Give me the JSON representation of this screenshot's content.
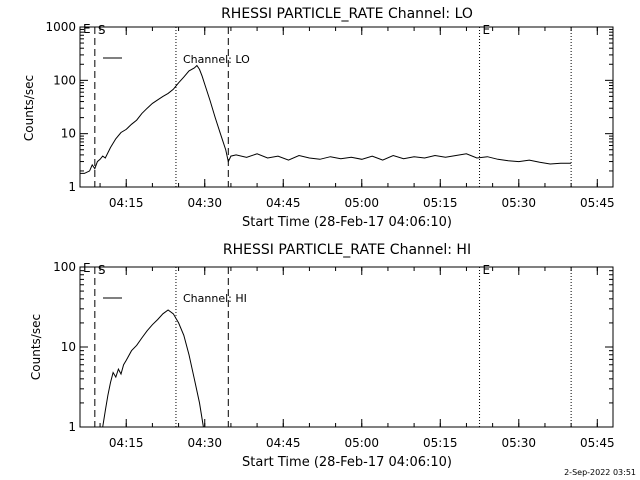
{
  "chart_data": [
    {
      "type": "line",
      "title": "RHESSI PARTICLE_RATE Channel: LO",
      "xlabel": "Start Time (28-Feb-17 04:06:10)",
      "ylabel": "Counts/sec",
      "yscale": "log",
      "ylim": [
        1,
        1000
      ],
      "xlim": [
        "04:06:10",
        "05:48:00"
      ],
      "ytick_labels": [
        "1",
        "10",
        "100",
        "1000"
      ],
      "ytick_values": [
        1,
        10,
        100,
        1000
      ],
      "xtick_labels": [
        "04:15",
        "04:30",
        "04:45",
        "05:00",
        "05:15",
        "05:30",
        "05:45"
      ],
      "legend": {
        "label": "Channel: LO",
        "position": "top-left"
      },
      "markers": [
        {
          "time": "04:09:00",
          "style": "dashed",
          "label": "S"
        },
        {
          "time": "04:24:30",
          "style": "dotted",
          "label": ""
        },
        {
          "time": "04:34:30",
          "style": "dashed",
          "label": ""
        },
        {
          "time": "05:22:30",
          "style": "dotted",
          "label": "E"
        },
        {
          "time": "05:40:00",
          "style": "dotted",
          "label": ""
        }
      ],
      "corner_label": "E",
      "series": [
        {
          "x": [
            "04:06:10",
            "04:07:00",
            "04:08:00",
            "04:08:30",
            "04:09:00",
            "04:09:30",
            "04:10:00",
            "04:10:30",
            "04:11:00",
            "04:12:00",
            "04:13:00",
            "04:14:00",
            "04:15:00",
            "04:16:00",
            "04:17:00",
            "04:18:00",
            "04:19:00",
            "04:20:00",
            "04:21:00",
            "04:22:00",
            "04:23:00",
            "04:24:00",
            "04:25:00",
            "04:26:00",
            "04:27:00",
            "04:28:00",
            "04:28:30",
            "04:29:00",
            "04:29:30",
            "04:30:00",
            "04:31:00",
            "04:32:00",
            "04:33:00",
            "04:34:00",
            "04:34:30",
            "04:35:00",
            "04:36:00",
            "04:38:00",
            "04:40:00",
            "04:42:00",
            "04:44:00",
            "04:46:00",
            "04:48:00",
            "04:50:00",
            "04:52:00",
            "04:54:00",
            "04:56:00",
            "04:58:00",
            "05:00:00",
            "05:02:00",
            "05:04:00",
            "05:06:00",
            "05:08:00",
            "05:10:00",
            "05:12:00",
            "05:14:00",
            "05:16:00",
            "05:18:00",
            "05:20:00",
            "05:22:00",
            "05:24:00",
            "05:26:00",
            "05:28:00",
            "05:30:00",
            "05:32:00",
            "05:34:00",
            "05:36:00",
            "05:38:00",
            "05:40:00"
          ],
          "y": [
            1.8,
            1.8,
            2.0,
            2.6,
            2.2,
            3.0,
            3.3,
            3.8,
            3.5,
            5.5,
            8.0,
            10.5,
            12.0,
            15.0,
            18.0,
            24.0,
            30.0,
            37.0,
            43.0,
            50.0,
            57.0,
            68.0,
            90.0,
            115.0,
            150.0,
            170.0,
            190.0,
            160.0,
            120.0,
            85.0,
            42.0,
            20.0,
            10.0,
            5.0,
            3.0,
            3.8,
            4.0,
            3.6,
            4.2,
            3.5,
            3.8,
            3.2,
            3.9,
            3.5,
            3.3,
            3.7,
            3.4,
            3.6,
            3.3,
            3.8,
            3.2,
            3.9,
            3.4,
            3.7,
            3.5,
            3.9,
            3.6,
            3.9,
            4.2,
            3.5,
            3.7,
            3.3,
            3.1,
            3.0,
            3.2,
            2.9,
            2.7,
            2.8,
            2.8
          ]
        }
      ]
    },
    {
      "type": "line",
      "title": "RHESSI PARTICLE_RATE Channel: HI",
      "xlabel": "Start Time (28-Feb-17 04:06:10)",
      "ylabel": "Counts/sec",
      "yscale": "log",
      "ylim": [
        1,
        100
      ],
      "xlim": [
        "04:06:10",
        "05:48:00"
      ],
      "ytick_labels": [
        "1",
        "10",
        "100"
      ],
      "ytick_values": [
        1,
        10,
        100
      ],
      "xtick_labels": [
        "04:15",
        "04:30",
        "04:45",
        "05:00",
        "05:15",
        "05:30",
        "05:45"
      ],
      "legend": {
        "label": "Channel: HI",
        "position": "top-left"
      },
      "markers": [
        {
          "time": "04:09:00",
          "style": "dashed",
          "label": "S"
        },
        {
          "time": "04:24:30",
          "style": "dotted",
          "label": ""
        },
        {
          "time": "04:34:30",
          "style": "dashed",
          "label": ""
        },
        {
          "time": "05:22:30",
          "style": "dotted",
          "label": "E"
        },
        {
          "time": "05:40:00",
          "style": "dotted",
          "label": ""
        }
      ],
      "corner_label": "E",
      "series": [
        {
          "x": [
            "04:10:30",
            "04:11:00",
            "04:11:30",
            "04:12:00",
            "04:12:30",
            "04:13:00",
            "04:13:30",
            "04:14:00",
            "04:14:30",
            "04:15:00",
            "04:16:00",
            "04:17:00",
            "04:18:00",
            "04:19:00",
            "04:20:00",
            "04:21:00",
            "04:22:00",
            "04:23:00",
            "04:24:00",
            "04:25:00",
            "04:26:00",
            "04:27:00",
            "04:28:00",
            "04:29:00",
            "04:29:45"
          ],
          "y": [
            1.0,
            1.6,
            2.5,
            3.6,
            4.8,
            4.2,
            5.3,
            4.6,
            6.0,
            6.8,
            9.0,
            10.5,
            13.0,
            16.0,
            19.0,
            22.0,
            26.0,
            29.0,
            26.0,
            20.0,
            14.0,
            8.0,
            4.0,
            2.0,
            1.0
          ]
        }
      ]
    }
  ],
  "footer": {
    "timestamp": "2-Sep-2022 03:51"
  }
}
